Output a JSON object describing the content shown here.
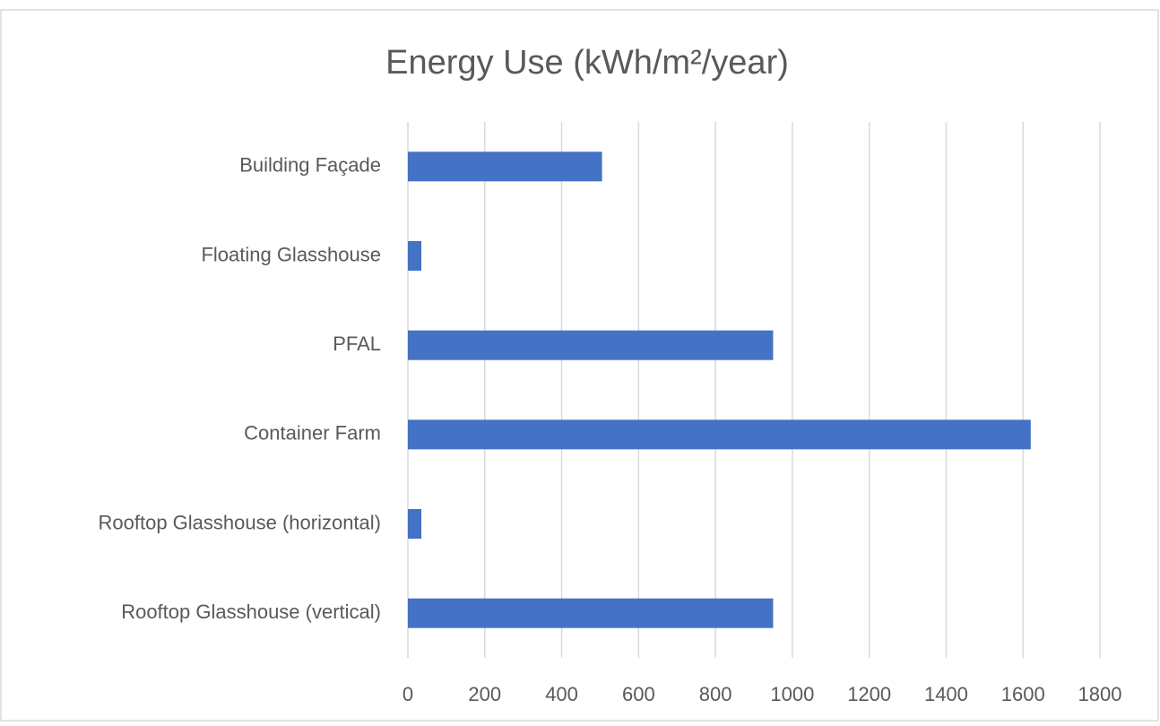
{
  "chart_data": {
    "type": "bar",
    "orientation": "horizontal",
    "title": "Energy Use (kWh/m²/year)",
    "categories": [
      "Building Façade",
      "Floating Glasshouse",
      "PFAL",
      "Container Farm",
      "Rooftop Glasshouse (horizontal)",
      "Rooftop Glasshouse (vertical)"
    ],
    "values": [
      505,
      35,
      950,
      1620,
      35,
      950
    ],
    "color": "#4472c4",
    "xlim": [
      0,
      1800
    ],
    "xticks": [
      0,
      200,
      400,
      600,
      800,
      1000,
      1200,
      1400,
      1600,
      1800
    ],
    "grid": true
  }
}
